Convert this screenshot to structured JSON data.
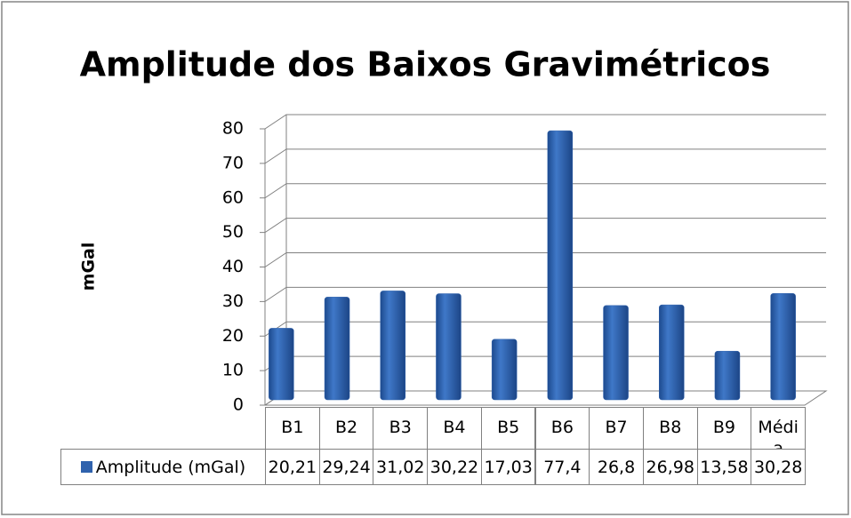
{
  "chart_data": {
    "type": "bar",
    "title": "Amplitude dos Baixos Gravimétricos",
    "y_axis_label": "mGal",
    "categories": [
      "B1",
      "B2",
      "B3",
      "B4",
      "B5",
      "B6",
      "B7",
      "B8",
      "B9",
      "Média"
    ],
    "series": [
      {
        "name": "Amplitude (mGal)",
        "color": "#2f62ad",
        "values": [
          20.21,
          29.24,
          31.02,
          30.22,
          17.03,
          77.4,
          26.8,
          26.98,
          13.58,
          30.28
        ],
        "value_labels": [
          "20,21",
          "29,24",
          "31,02",
          "30,22",
          "17,03",
          "77,4",
          "26,8",
          "26,98",
          "13,58",
          "30,28"
        ]
      }
    ],
    "ylim": [
      0,
      80
    ],
    "yticks": [
      0,
      10,
      20,
      30,
      40,
      50,
      60,
      70,
      80
    ],
    "grid": true
  }
}
